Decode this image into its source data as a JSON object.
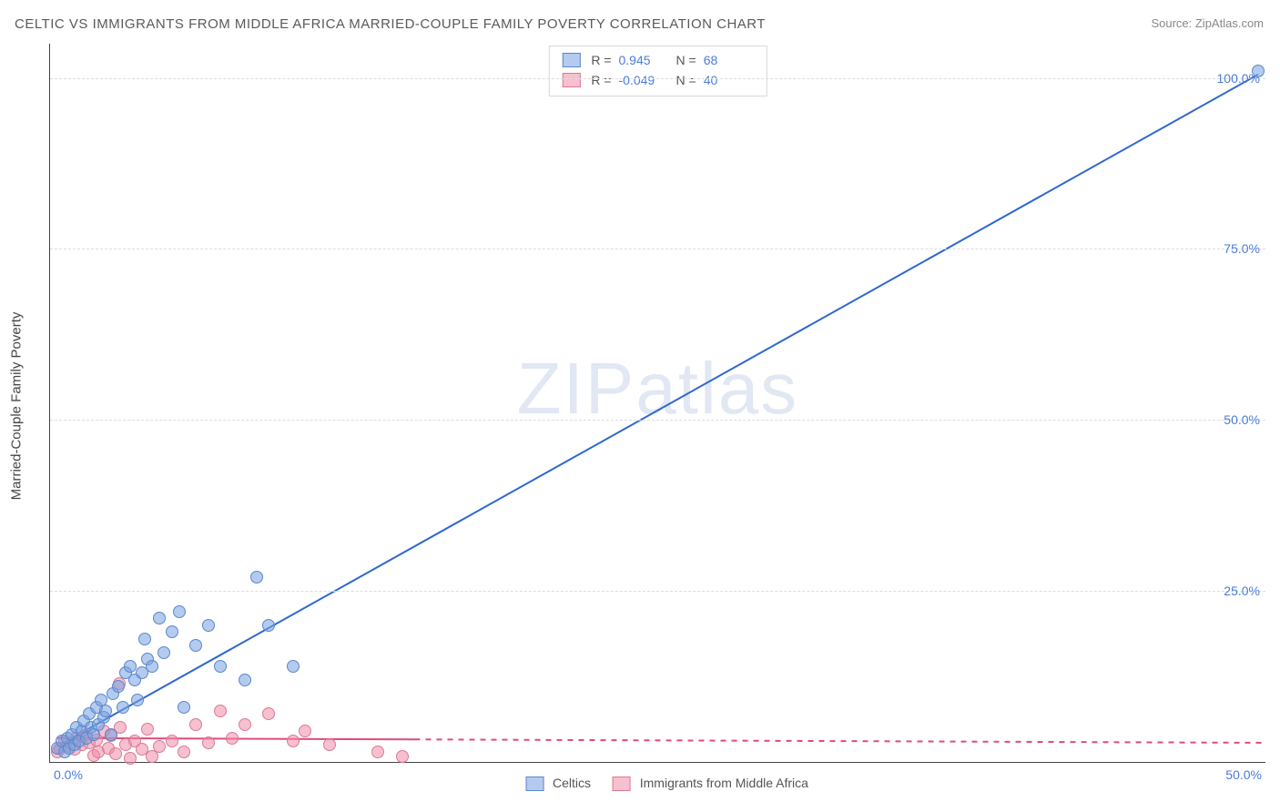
{
  "title": "CELTIC VS IMMIGRANTS FROM MIDDLE AFRICA MARRIED-COUPLE FAMILY POVERTY CORRELATION CHART",
  "source": "Source: ZipAtlas.com",
  "watermark": "ZIPatlas",
  "yaxis_label": "Married-Couple Family Poverty",
  "chart": {
    "type": "scatter-correlation",
    "xlim": [
      0,
      50
    ],
    "ylim": [
      0,
      105
    ],
    "ytick_values": [
      25,
      50,
      75,
      100
    ],
    "ytick_labels": [
      "25.0%",
      "50.0%",
      "75.0%",
      "100.0%"
    ],
    "xtick_left": "0.0%",
    "xtick_right": "50.0%",
    "grid_dash_color": "#dddddd",
    "axis_color": "#444444",
    "background": "#ffffff",
    "marker_radius": 7,
    "marker_stroke": 1,
    "series": {
      "blue": {
        "label": "Celtics",
        "fill": "rgba(118,160,225,0.55)",
        "stroke": "#5a88c9",
        "line_color": "#2e67d1",
        "line_width": 2,
        "r_value": "0.945",
        "n_value": "68",
        "trend": {
          "x1": 0.4,
          "y1": 2.5,
          "x2": 49.7,
          "y2": 100.5,
          "dashed_from_x": null
        },
        "points": [
          [
            0.3,
            2
          ],
          [
            0.5,
            3
          ],
          [
            0.6,
            1.5
          ],
          [
            0.7,
            3.5
          ],
          [
            0.8,
            2
          ],
          [
            0.9,
            4
          ],
          [
            1.0,
            2.5
          ],
          [
            1.1,
            5
          ],
          [
            1.2,
            3
          ],
          [
            1.3,
            4.5
          ],
          [
            1.4,
            6
          ],
          [
            1.5,
            3.5
          ],
          [
            1.6,
            7
          ],
          [
            1.7,
            5
          ],
          [
            1.8,
            4
          ],
          [
            1.9,
            8
          ],
          [
            2.0,
            5.5
          ],
          [
            2.1,
            9
          ],
          [
            2.2,
            6.5
          ],
          [
            2.3,
            7.5
          ],
          [
            2.5,
            4
          ],
          [
            2.6,
            10
          ],
          [
            2.8,
            11
          ],
          [
            3.0,
            8
          ],
          [
            3.1,
            13
          ],
          [
            3.3,
            14
          ],
          [
            3.5,
            12
          ],
          [
            3.6,
            9
          ],
          [
            3.8,
            13
          ],
          [
            3.9,
            18
          ],
          [
            4.0,
            15
          ],
          [
            4.2,
            14
          ],
          [
            4.5,
            21
          ],
          [
            4.7,
            16
          ],
          [
            5.0,
            19
          ],
          [
            5.3,
            22
          ],
          [
            5.5,
            8
          ],
          [
            6.0,
            17
          ],
          [
            6.5,
            20
          ],
          [
            7.0,
            14
          ],
          [
            8.0,
            12
          ],
          [
            8.5,
            27
          ],
          [
            9.0,
            20
          ],
          [
            10.0,
            14
          ],
          [
            49.7,
            101
          ]
        ]
      },
      "pink": {
        "label": "Immigrants from Middle Africa",
        "fill": "rgba(240,140,165,0.55)",
        "stroke": "#da7a97",
        "line_color": "#e24a7a",
        "line_width": 2,
        "r_value": "-0.049",
        "n_value": "40",
        "trend": {
          "x1": 0.3,
          "y1": 3.5,
          "x2": 50,
          "y2": 2.8,
          "dashed_from_x": 15
        },
        "points": [
          [
            0.3,
            1.5
          ],
          [
            0.4,
            2
          ],
          [
            0.6,
            3
          ],
          [
            0.8,
            2.2
          ],
          [
            1.0,
            1.8
          ],
          [
            1.1,
            3.5
          ],
          [
            1.3,
            2.5
          ],
          [
            1.5,
            4
          ],
          [
            1.6,
            2.8
          ],
          [
            1.8,
            1
          ],
          [
            1.9,
            3.2
          ],
          [
            2.0,
            1.5
          ],
          [
            2.2,
            4.5
          ],
          [
            2.4,
            2
          ],
          [
            2.5,
            3.8
          ],
          [
            2.7,
            1.2
          ],
          [
            2.85,
            11.5
          ],
          [
            2.9,
            5
          ],
          [
            3.1,
            2.5
          ],
          [
            3.3,
            0.5
          ],
          [
            3.5,
            3
          ],
          [
            3.8,
            1.8
          ],
          [
            4.0,
            4.8
          ],
          [
            4.2,
            0.8
          ],
          [
            4.5,
            2.2
          ],
          [
            5.0,
            3
          ],
          [
            5.5,
            1.5
          ],
          [
            6.0,
            5.5
          ],
          [
            6.5,
            2.8
          ],
          [
            7.0,
            7.5
          ],
          [
            7.5,
            3.5
          ],
          [
            8.0,
            5.5
          ],
          [
            9,
            7.0
          ],
          [
            10.0,
            3
          ],
          [
            10.5,
            4.5
          ],
          [
            11.5,
            2.5
          ],
          [
            13.5,
            1.5
          ],
          [
            14.5,
            0.8
          ]
        ]
      }
    },
    "legend_top_labels": {
      "R": "R =",
      "N": "N ="
    },
    "legend_bottom_order": [
      "blue",
      "pink"
    ]
  }
}
